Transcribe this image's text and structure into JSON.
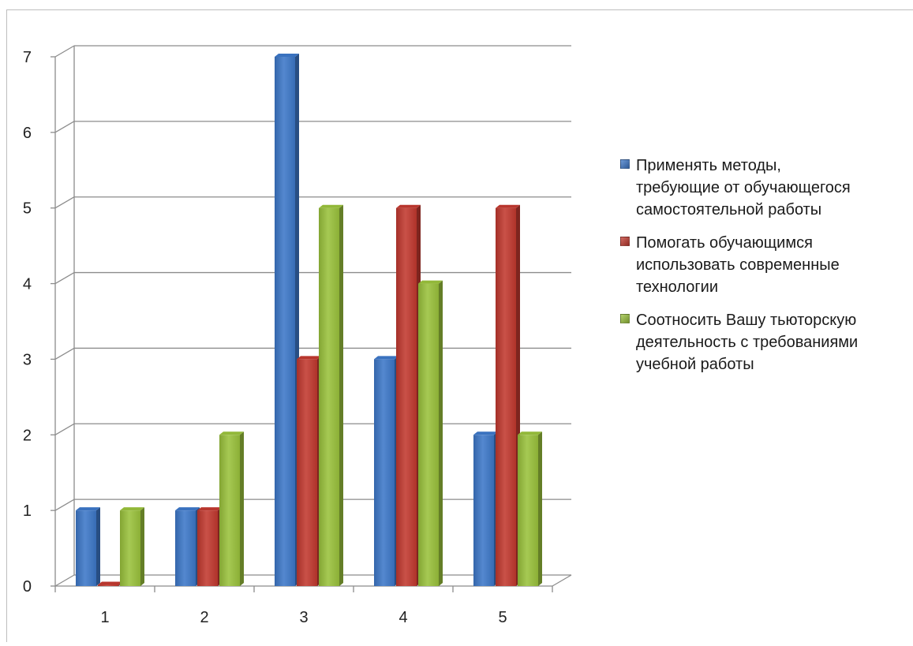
{
  "chart_data": {
    "type": "bar",
    "title": "",
    "xlabel": "",
    "ylabel": "",
    "categories": [
      "1",
      "2",
      "3",
      "4",
      "5"
    ],
    "ylim": [
      0,
      7
    ],
    "yticks": [
      "0",
      "1",
      "2",
      "3",
      "4",
      "5",
      "6",
      "7"
    ],
    "grid": true,
    "legend_position": "right",
    "series": [
      {
        "name": "Применять методы,\nтребующие от обучающегося\nсамостоятельной работы",
        "color": "#3d78c9",
        "values": [
          1,
          1,
          7,
          3,
          2
        ]
      },
      {
        "name": "Помогать обучающимся\nиспользовать современные\nтехнологии",
        "color": "#c2392f",
        "values": [
          0,
          1,
          3,
          5,
          5
        ]
      },
      {
        "name": "Соотносить Вашу тьюторскую\nдеятельность с требованиями\nучебной работы",
        "color": "#9ac23c",
        "values": [
          1,
          2,
          5,
          4,
          2
        ]
      }
    ]
  }
}
